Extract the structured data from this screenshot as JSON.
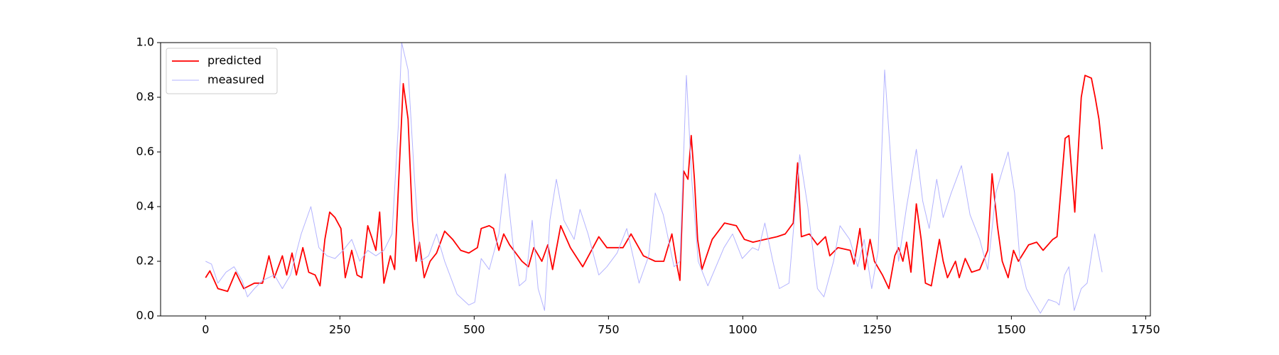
{
  "chart_data": {
    "type": "line",
    "xlim": [
      -83.75,
      1758.75
    ],
    "ylim": [
      0,
      1
    ],
    "xticks": [
      0,
      250,
      500,
      750,
      1000,
      1250,
      1500,
      1750
    ],
    "yticks": [
      {
        "value": 0,
        "label": "0.0"
      },
      {
        "value": 0.2,
        "label": "0.2"
      },
      {
        "value": 0.4,
        "label": "0.4"
      },
      {
        "value": 0.6,
        "label": "0.6"
      },
      {
        "value": 0.8,
        "label": "0.8"
      },
      {
        "value": 1,
        "label": "1.0"
      }
    ],
    "legend": "upper left",
    "series": [
      {
        "name": "predicted",
        "color": "#ff0000",
        "width": 1.8,
        "x": [
          0,
          8,
          23,
          41,
          56,
          71,
          91,
          106,
          118,
          128,
          143,
          151,
          161,
          169,
          181,
          192,
          204,
          213,
          222,
          231,
          241,
          252,
          260,
          272,
          282,
          291,
          302,
          309,
          317,
          324,
          332,
          344,
          352,
          362,
          368,
          377,
          385,
          392,
          398,
          407,
          418,
          430,
          445,
          460,
          475,
          490,
          506,
          513,
          528,
          536,
          546,
          555,
          566,
          589,
          601,
          611,
          626,
          637,
          646,
          661,
          679,
          702,
          732,
          747,
          777,
          792,
          815,
          837,
          853,
          868,
          878,
          883,
          890,
          898,
          904,
          910,
          916,
          924,
          943,
          966,
          988,
          1003,
          1019,
          1041,
          1064,
          1079,
          1094,
          1102,
          1109,
          1124,
          1139,
          1154,
          1162,
          1177,
          1200,
          1207,
          1218,
          1227,
          1237,
          1245,
          1260,
          1272,
          1283,
          1290,
          1298,
          1305,
          1313,
          1323,
          1332,
          1340,
          1351,
          1366,
          1373,
          1381,
          1396,
          1403,
          1414,
          1426,
          1441,
          1456,
          1464,
          1474,
          1483,
          1494,
          1504,
          1513,
          1532,
          1547,
          1559,
          1577,
          1585,
          1600,
          1607,
          1618,
          1630,
          1637,
          1649,
          1656,
          1663,
          1669
        ],
        "values": [
          0.14,
          0.165,
          0.1,
          0.09,
          0.16,
          0.1,
          0.12,
          0.12,
          0.22,
          0.14,
          0.22,
          0.15,
          0.23,
          0.15,
          0.25,
          0.16,
          0.15,
          0.11,
          0.28,
          0.38,
          0.36,
          0.32,
          0.14,
          0.24,
          0.15,
          0.14,
          0.33,
          0.29,
          0.24,
          0.38,
          0.12,
          0.22,
          0.17,
          0.6,
          0.85,
          0.72,
          0.35,
          0.2,
          0.27,
          0.14,
          0.2,
          0.23,
          0.31,
          0.28,
          0.24,
          0.23,
          0.25,
          0.32,
          0.33,
          0.32,
          0.24,
          0.3,
          0.26,
          0.2,
          0.18,
          0.25,
          0.2,
          0.26,
          0.17,
          0.33,
          0.25,
          0.18,
          0.29,
          0.25,
          0.25,
          0.3,
          0.22,
          0.2,
          0.2,
          0.3,
          0.18,
          0.13,
          0.53,
          0.5,
          0.66,
          0.5,
          0.28,
          0.17,
          0.28,
          0.34,
          0.33,
          0.28,
          0.27,
          0.28,
          0.29,
          0.3,
          0.34,
          0.56,
          0.29,
          0.3,
          0.26,
          0.29,
          0.22,
          0.25,
          0.24,
          0.19,
          0.32,
          0.17,
          0.28,
          0.2,
          0.15,
          0.1,
          0.22,
          0.25,
          0.2,
          0.27,
          0.16,
          0.41,
          0.28,
          0.12,
          0.11,
          0.28,
          0.2,
          0.14,
          0.2,
          0.14,
          0.21,
          0.16,
          0.17,
          0.24,
          0.52,
          0.33,
          0.2,
          0.14,
          0.24,
          0.2,
          0.26,
          0.27,
          0.24,
          0.28,
          0.29,
          0.65,
          0.66,
          0.38,
          0.8,
          0.88,
          0.87,
          0.8,
          0.72,
          0.61
        ]
      },
      {
        "name": "measured",
        "color": "#b3b3ff",
        "width": 1,
        "x": [
          0,
          11,
          23,
          38,
          53,
          68,
          78,
          91,
          106,
          128,
          143,
          158,
          178,
          196,
          211,
          226,
          241,
          256,
          272,
          287,
          302,
          317,
          332,
          347,
          359,
          365,
          377,
          389,
          400,
          415,
          430,
          445,
          468,
          490,
          501,
          513,
          528,
          546,
          558,
          573,
          584,
          596,
          608,
          619,
          631,
          641,
          653,
          667,
          686,
          697,
          712,
          732,
          747,
          766,
          784,
          807,
          825,
          837,
          852,
          872,
          883,
          895,
          905,
          917,
          935,
          965,
          981,
          999,
          1018,
          1029,
          1041,
          1056,
          1068,
          1086,
          1106,
          1121,
          1139,
          1151,
          1169,
          1181,
          1199,
          1214,
          1226,
          1240,
          1252,
          1264,
          1278,
          1290,
          1305,
          1323,
          1335,
          1347,
          1361,
          1373,
          1388,
          1407,
          1423,
          1441,
          1456,
          1471,
          1483,
          1494,
          1506,
          1516,
          1528,
          1542,
          1554,
          1569,
          1584,
          1589,
          1599,
          1607,
          1617,
          1630,
          1641,
          1655,
          1669
        ],
        "values": [
          0.2,
          0.19,
          0.12,
          0.16,
          0.18,
          0.13,
          0.07,
          0.1,
          0.13,
          0.15,
          0.1,
          0.15,
          0.3,
          0.4,
          0.25,
          0.22,
          0.21,
          0.24,
          0.28,
          0.2,
          0.24,
          0.22,
          0.24,
          0.3,
          0.7,
          1.0,
          0.9,
          0.5,
          0.2,
          0.22,
          0.3,
          0.2,
          0.08,
          0.04,
          0.05,
          0.21,
          0.17,
          0.3,
          0.52,
          0.25,
          0.11,
          0.13,
          0.35,
          0.1,
          0.02,
          0.35,
          0.5,
          0.35,
          0.28,
          0.39,
          0.3,
          0.15,
          0.18,
          0.23,
          0.32,
          0.12,
          0.22,
          0.45,
          0.37,
          0.18,
          0.2,
          0.88,
          0.5,
          0.2,
          0.11,
          0.25,
          0.3,
          0.21,
          0.25,
          0.24,
          0.34,
          0.2,
          0.1,
          0.12,
          0.59,
          0.4,
          0.1,
          0.07,
          0.2,
          0.33,
          0.28,
          0.18,
          0.28,
          0.1,
          0.24,
          0.9,
          0.5,
          0.2,
          0.4,
          0.61,
          0.42,
          0.32,
          0.5,
          0.36,
          0.45,
          0.55,
          0.37,
          0.28,
          0.17,
          0.45,
          0.53,
          0.6,
          0.45,
          0.2,
          0.1,
          0.05,
          0.01,
          0.06,
          0.05,
          0.04,
          0.15,
          0.18,
          0.02,
          0.1,
          0.12,
          0.3,
          0.16
        ]
      }
    ]
  }
}
